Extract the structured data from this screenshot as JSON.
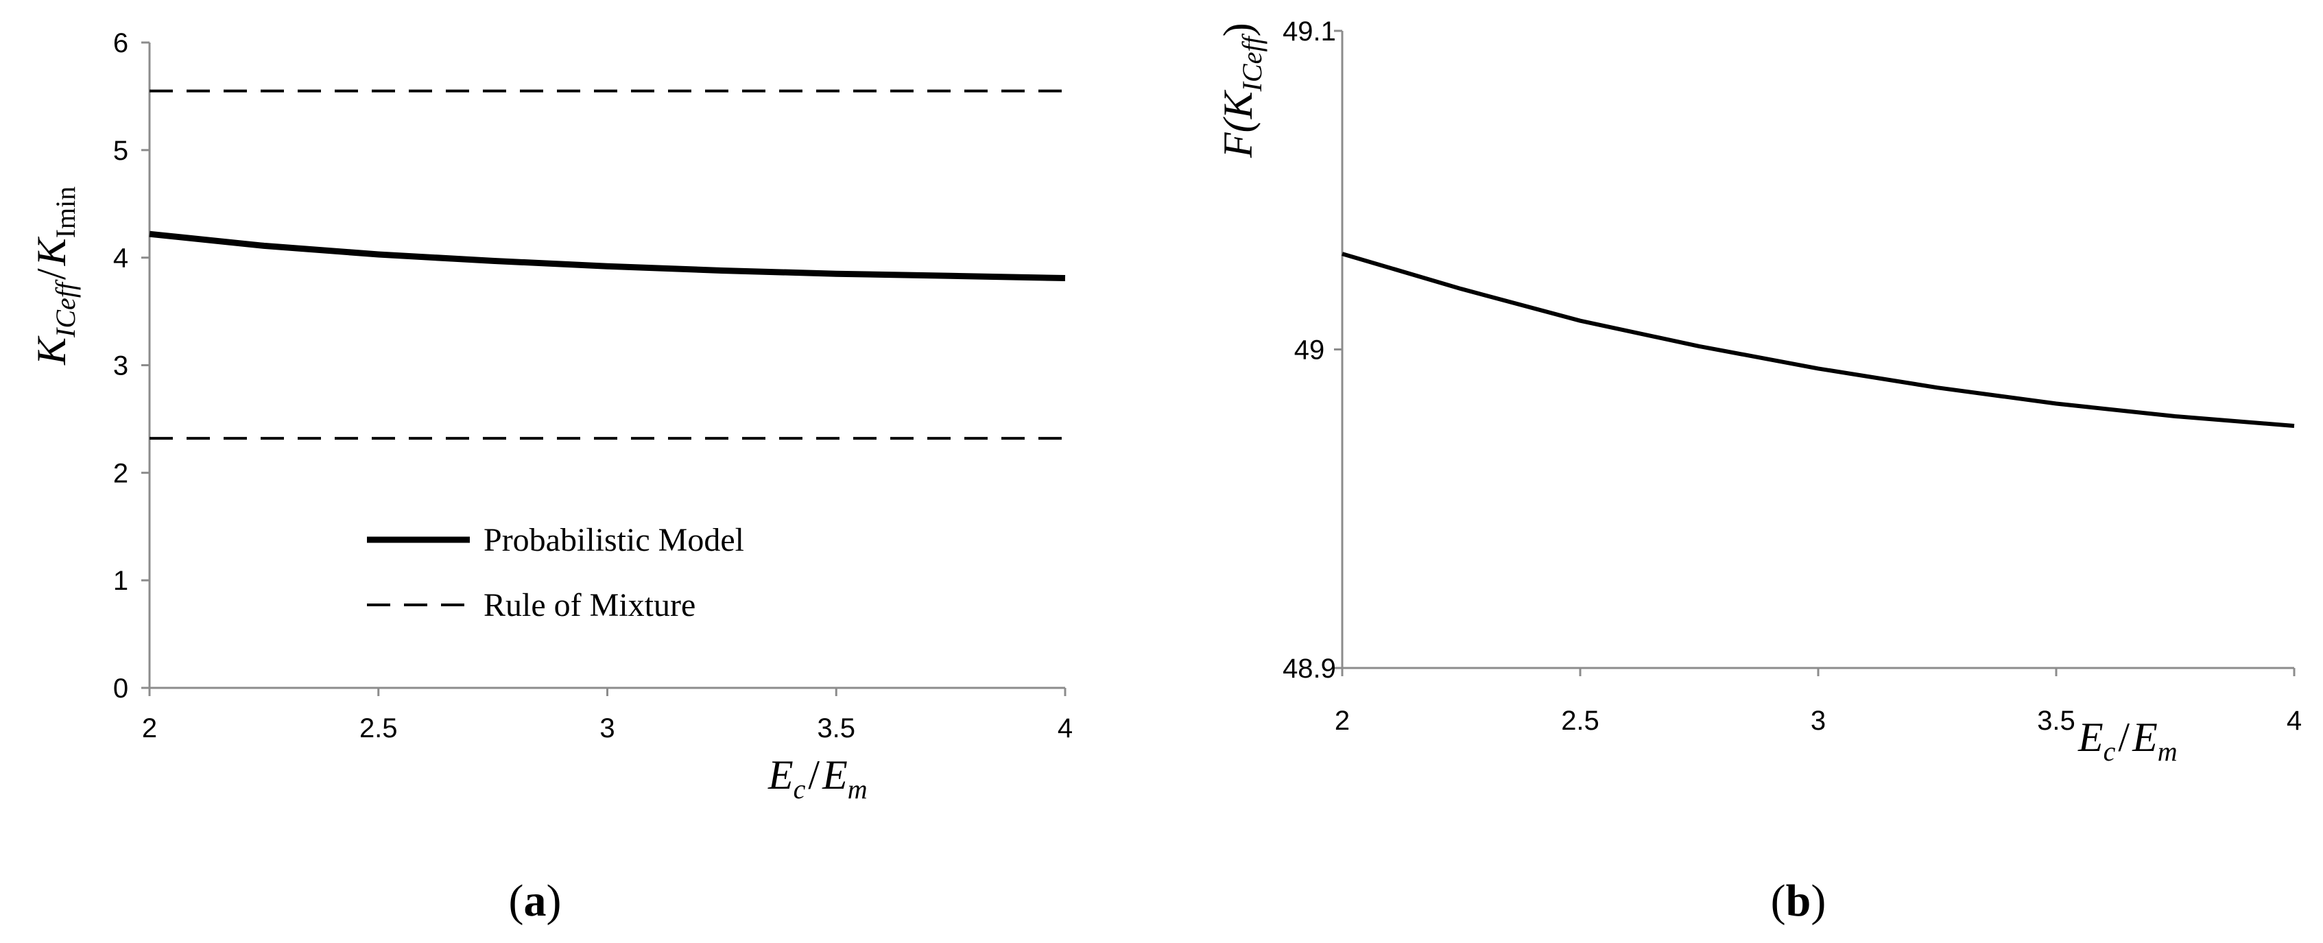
{
  "chart_data": [
    {
      "type": "line",
      "panel_label": "(a)",
      "xlabel": {
        "main": "E",
        "sub1": "c",
        "sep": "/",
        "main2": "E",
        "sub2": "m"
      },
      "ylabel": {
        "main": "K",
        "sub1": "ICeff",
        "sep": "/",
        "main2": "K",
        "sub2": "Imin"
      },
      "xlim": [
        2,
        4
      ],
      "ylim": [
        0,
        6
      ],
      "x_ticks": [
        2,
        2.5,
        3,
        3.5,
        4
      ],
      "x_tick_labels": [
        "2",
        "2.5",
        "3",
        "3.5",
        "4"
      ],
      "y_ticks": [
        0,
        1,
        2,
        3,
        4,
        5,
        6
      ],
      "y_tick_labels": [
        "0",
        "1",
        "2",
        "3",
        "4",
        "5",
        "6"
      ],
      "grid": false,
      "legend_position": "lower-center",
      "series": [
        {
          "name": "Probabilistic Model",
          "style": "solid",
          "x": [
            2.0,
            2.25,
            2.5,
            2.75,
            3.0,
            3.25,
            3.5,
            3.75,
            4.0
          ],
          "y": [
            4.22,
            4.11,
            4.03,
            3.97,
            3.92,
            3.88,
            3.85,
            3.83,
            3.81
          ]
        },
        {
          "name": "Rule of Mixture",
          "style": "dashed",
          "x": [
            2.0,
            4.0
          ],
          "y": [
            5.55,
            5.55
          ]
        },
        {
          "name": "",
          "style": "dashed",
          "x": [
            2.0,
            4.0
          ],
          "y": [
            2.32,
            2.32
          ]
        }
      ]
    },
    {
      "type": "line",
      "panel_label": "(b)",
      "xlabel": {
        "main": "E",
        "sub1": "c",
        "sep": "/",
        "main2": "E",
        "sub2": "m"
      },
      "ylabel": {
        "prefix": "F(",
        "main": "K",
        "sub1": "ICeff",
        "suffix": ")"
      },
      "xlim": [
        2,
        4
      ],
      "ylim": [
        48.9,
        49.1
      ],
      "x_ticks": [
        2,
        2.5,
        3,
        3.5,
        4
      ],
      "x_tick_labels": [
        "2",
        "2.5",
        "3",
        "3.5",
        "4"
      ],
      "y_ticks": [
        48.9,
        49.0,
        49.1
      ],
      "y_tick_labels": [
        "48.9",
        "49",
        "49.1"
      ],
      "grid": false,
      "series": [
        {
          "name": "",
          "style": "solid",
          "x": [
            2.0,
            2.25,
            2.5,
            2.75,
            3.0,
            3.25,
            3.5,
            3.75,
            4.0
          ],
          "y": [
            49.03,
            49.019,
            49.009,
            49.001,
            48.994,
            48.988,
            48.983,
            48.979,
            48.976
          ]
        }
      ]
    }
  ]
}
